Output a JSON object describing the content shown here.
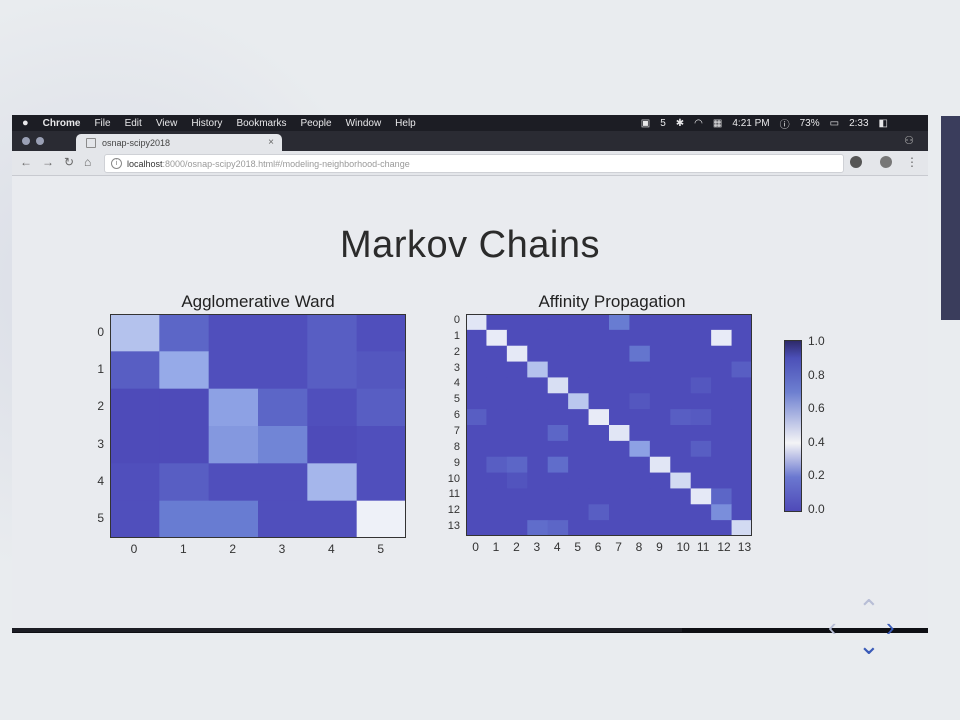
{
  "menubar": {
    "apple": "",
    "app": "Chrome",
    "items": [
      "File",
      "Edit",
      "View",
      "History",
      "Bookmarks",
      "People",
      "Window",
      "Help"
    ],
    "status": {
      "count": "5",
      "time": "4:21 PM",
      "battery": "73%",
      "clock": "2:33"
    }
  },
  "tab": {
    "title": "osnap-scipy2018",
    "close": "×"
  },
  "url": {
    "host": "localhost",
    "path": ":8000/osnap-scipy2018.html#/modeling-neighborhood-change"
  },
  "slide": {
    "title": "Markov Chains"
  },
  "left_chart": {
    "title": "Agglomerative Ward",
    "xticks": [
      "0",
      "1",
      "2",
      "3",
      "4",
      "5"
    ],
    "yticks": [
      "0",
      "1",
      "2",
      "3",
      "4",
      "5"
    ]
  },
  "right_chart": {
    "title": "Affinity Propagation",
    "xticks": [
      "0",
      "1",
      "2",
      "3",
      "4",
      "5",
      "6",
      "7",
      "8",
      "9",
      "10",
      "11",
      "12",
      "13"
    ],
    "yticks": [
      "0",
      "1",
      "2",
      "3",
      "4",
      "5",
      "6",
      "7",
      "8",
      "9",
      "10",
      "11",
      "12",
      "13"
    ]
  },
  "colorbar": {
    "ticks": [
      "1.0",
      "0.8",
      "0.6",
      "0.4",
      "0.2",
      "0.0"
    ]
  },
  "nav": {
    "right": "›",
    "down": "⌄",
    "left": "‹",
    "up": "⌃"
  },
  "chart_data": [
    {
      "type": "heatmap",
      "title": "Agglomerative Ward",
      "rows": 6,
      "cols": 6,
      "values": [
        [
          0.7,
          0.2,
          0.05,
          0.05,
          0.15,
          0.05
        ],
        [
          0.15,
          0.6,
          0.05,
          0.05,
          0.15,
          0.1
        ],
        [
          0.02,
          0.02,
          0.55,
          0.2,
          0.05,
          0.15
        ],
        [
          0.02,
          0.02,
          0.5,
          0.4,
          0.02,
          0.05
        ],
        [
          0.05,
          0.15,
          0.05,
          0.05,
          0.65,
          0.05
        ],
        [
          0.05,
          0.35,
          0.35,
          0.05,
          0.05,
          0.95
        ]
      ]
    },
    {
      "type": "heatmap",
      "title": "Affinity Propagation",
      "rows": 14,
      "cols": 14,
      "diag": [
        0.85,
        0.9,
        0.88,
        0.7,
        0.82,
        0.72,
        0.9,
        0.85,
        0.55,
        0.85,
        0.8,
        0.88,
        0.45,
        0.8
      ]
    }
  ]
}
